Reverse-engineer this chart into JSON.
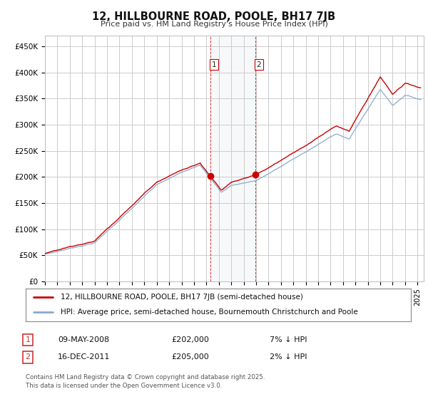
{
  "title": "12, HILLBOURNE ROAD, POOLE, BH17 7JB",
  "subtitle": "Price paid vs. HM Land Registry's House Price Index (HPI)",
  "ylim": [
    0,
    470000
  ],
  "yticks": [
    0,
    50000,
    100000,
    150000,
    200000,
    250000,
    300000,
    350000,
    400000,
    450000
  ],
  "ytick_labels": [
    "£0",
    "£50K",
    "£100K",
    "£150K",
    "£200K",
    "£250K",
    "£300K",
    "£350K",
    "£400K",
    "£450K"
  ],
  "sale1_date_num": 2008.354,
  "sale1_price": 202000,
  "sale2_date_num": 2011.958,
  "sale2_price": 205000,
  "legend_line1": "12, HILLBOURNE ROAD, POOLE, BH17 7JB (semi-detached house)",
  "legend_line2": "HPI: Average price, semi-detached house, Bournemouth Christchurch and Poole",
  "table_row1": [
    "1",
    "09-MAY-2008",
    "£202,000",
    "7% ↓ HPI"
  ],
  "table_row2": [
    "2",
    "16-DEC-2011",
    "£205,000",
    "2% ↓ HPI"
  ],
  "footer": "Contains HM Land Registry data © Crown copyright and database right 2025.\nThis data is licensed under the Open Government Licence v3.0.",
  "line_color_property": "#cc0000",
  "line_color_hpi": "#88aacc",
  "background_color": "#ffffff",
  "grid_color": "#cccccc",
  "xlim_start": 1995.0,
  "xlim_end": 2025.5
}
